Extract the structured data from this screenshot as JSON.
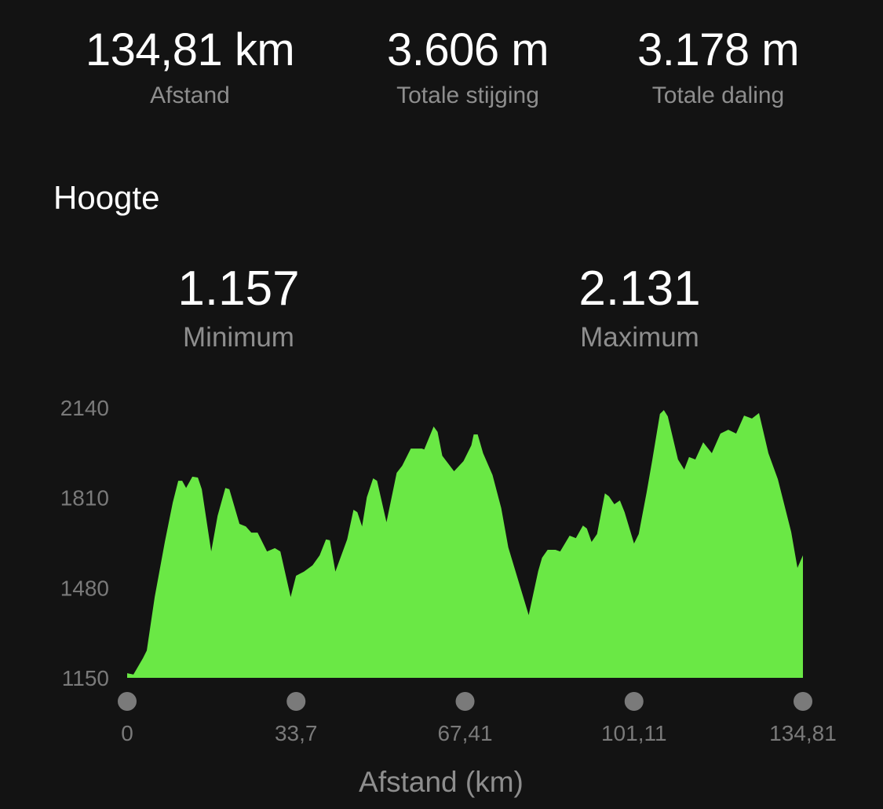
{
  "summary": [
    {
      "value": "134,81 km",
      "label": "Afstand"
    },
    {
      "value": "3.606 m",
      "label": "Totale stijging"
    },
    {
      "value": "3.178 m",
      "label": "Totale daling"
    }
  ],
  "section_title": "Hoogte",
  "elevation_stats": [
    {
      "value": "1.157",
      "label": "Minimum"
    },
    {
      "value": "2.131",
      "label": "Maximum"
    }
  ],
  "chart_data": {
    "type": "area",
    "xlabel": "Afstand (km)",
    "ylabel": "",
    "xlim": [
      0,
      134.81
    ],
    "ylim": [
      1150,
      2140
    ],
    "x_ticks": [
      "0",
      "33,7",
      "67,41",
      "101,11",
      "134,81"
    ],
    "x_tick_values": [
      0,
      33.7,
      67.41,
      101.11,
      134.81
    ],
    "y_ticks": [
      "2140",
      "1810",
      "1480",
      "1150"
    ],
    "y_tick_values": [
      2140,
      1810,
      1480,
      1150
    ],
    "grid": false,
    "legend": "none",
    "fill_color": "#6ae845",
    "marker_color": "#7a7a7a",
    "x": [
      0,
      1.25,
      3.14,
      3.92,
      5.49,
      7.52,
      9.09,
      10.19,
      10.97,
      11.76,
      13.01,
      14.11,
      14.89,
      16.77,
      18.03,
      19.59,
      20.38,
      22.41,
      23.67,
      24.77,
      26.02,
      27.9,
      29.47,
      30.57,
      32.61,
      33.7,
      35.27,
      36.99,
      38.41,
      39.66,
      40.44,
      41.54,
      43.89,
      45.15,
      45.93,
      46.87,
      47.81,
      49.07,
      49.85,
      51.73,
      53.77,
      54.87,
      56.59,
      58.79,
      59.26,
      61.14,
      61.92,
      62.86,
      65.21,
      67.09,
      68.66,
      69.13,
      69.92,
      71.01,
      72.89,
      74.62,
      76.03,
      78.07,
      80.1,
      81.99,
      82.77,
      83.87,
      85.44,
      86.38,
      88.26,
      89.51,
      90.92,
      91.71,
      92.65,
      93.74,
      95.31,
      96.1,
      97.19,
      98.29,
      99.23,
      101.11,
      102.05,
      103.62,
      104.72,
      106.28,
      107.07,
      107.85,
      109.89,
      111.14,
      112.09,
      113.34,
      114.91,
      116.63,
      118.36,
      119.92,
      121.49,
      123.06,
      124.63,
      126.04,
      127.92,
      129.8,
      132.46,
      133.72,
      134.81
    ],
    "y": [
      1167,
      1162,
      1222,
      1250,
      1446,
      1648,
      1792,
      1872,
      1872,
      1846,
      1887,
      1884,
      1841,
      1613,
      1743,
      1846,
      1841,
      1714,
      1705,
      1682,
      1682,
      1613,
      1625,
      1613,
      1446,
      1524,
      1539,
      1562,
      1599,
      1657,
      1654,
      1539,
      1657,
      1766,
      1757,
      1705,
      1812,
      1881,
      1872,
      1720,
      1901,
      1927,
      1990,
      1990,
      1987,
      2071,
      2051,
      1964,
      1907,
      1944,
      2002,
      2042,
      2042,
      1973,
      1893,
      1772,
      1628,
      1504,
      1380,
      1541,
      1590,
      1619,
      1619,
      1613,
      1671,
      1662,
      1708,
      1697,
      1648,
      1677,
      1826,
      1815,
      1786,
      1800,
      1757,
      1642,
      1677,
      1829,
      1944,
      2117,
      2131,
      2108,
      1950,
      1913,
      1959,
      1950,
      2013,
      1973,
      2045,
      2059,
      2045,
      2111,
      2100,
      2120,
      1973,
      1878,
      1685,
      1553,
      1599
    ]
  }
}
